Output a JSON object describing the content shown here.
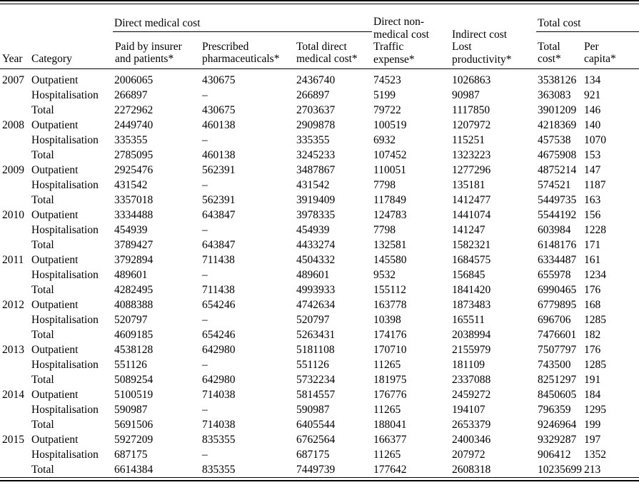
{
  "table": {
    "header": {
      "year_label": "Year",
      "category_label": "Category",
      "group_direct_medical": "Direct medical cost",
      "group_direct_nonmedical": "Direct non-medical cost",
      "group_indirect": "Indirect cost",
      "group_total": "Total cost",
      "col_paid": "Paid by insurer and patients*",
      "col_pharma": "Prescribed pharmaceuticals*",
      "col_total_direct": "Total direct medical cost*",
      "col_traffic": "Traffic expense*",
      "col_lost": "Lost productivity*",
      "col_total_cost": "Total cost*",
      "col_per_capita": "Per capita*"
    },
    "rows": [
      {
        "year": "2007",
        "category": "Outpatient",
        "values": [
          "2006065",
          "430675",
          "2436740",
          "74523",
          "1026863",
          "3538126",
          "134"
        ]
      },
      {
        "year": "",
        "category": "Hospitalisation",
        "values": [
          "266897",
          "–",
          "266897",
          "5199",
          "90987",
          "363083",
          "921"
        ]
      },
      {
        "year": "",
        "category": "Total",
        "values": [
          "2272962",
          "430675",
          "2703637",
          "79722",
          "1117850",
          "3901209",
          "146"
        ]
      },
      {
        "year": "2008",
        "category": "Outpatient",
        "values": [
          "2449740",
          "460138",
          "2909878",
          "100519",
          "1207972",
          "4218369",
          "140"
        ]
      },
      {
        "year": "",
        "category": "Hospitalisation",
        "values": [
          "335355",
          "–",
          "335355",
          "6932",
          "115251",
          "457538",
          "1070"
        ]
      },
      {
        "year": "",
        "category": "Total",
        "values": [
          "2785095",
          "460138",
          "3245233",
          "107452",
          "1323223",
          "4675908",
          "153"
        ]
      },
      {
        "year": "2009",
        "category": "Outpatient",
        "values": [
          "2925476",
          "562391",
          "3487867",
          "110051",
          "1277296",
          "4875214",
          "147"
        ]
      },
      {
        "year": "",
        "category": "Hospitalisation",
        "values": [
          "431542",
          "–",
          "431542",
          "7798",
          "135181",
          "574521",
          "1187"
        ]
      },
      {
        "year": "",
        "category": "Total",
        "values": [
          "3357018",
          "562391",
          "3919409",
          "117849",
          "1412477",
          "5449735",
          "163"
        ]
      },
      {
        "year": "2010",
        "category": "Outpatient",
        "values": [
          "3334488",
          "643847",
          "3978335",
          "124783",
          "1441074",
          "5544192",
          "156"
        ]
      },
      {
        "year": "",
        "category": "Hospitalisation",
        "values": [
          "454939",
          "–",
          "454939",
          "7798",
          "141247",
          "603984",
          "1228"
        ]
      },
      {
        "year": "",
        "category": "Total",
        "values": [
          "3789427",
          "643847",
          "4433274",
          "132581",
          "1582321",
          "6148176",
          "171"
        ]
      },
      {
        "year": "2011",
        "category": "Outpatient",
        "values": [
          "3792894",
          "711438",
          "4504332",
          "145580",
          "1684575",
          "6334487",
          "161"
        ]
      },
      {
        "year": "",
        "category": "Hospitalisation",
        "values": [
          "489601",
          "–",
          "489601",
          "9532",
          "156845",
          "655978",
          "1234"
        ]
      },
      {
        "year": "",
        "category": "Total",
        "values": [
          "4282495",
          "711438",
          "4993933",
          "155112",
          "1841420",
          "6990465",
          "176"
        ]
      },
      {
        "year": "2012",
        "category": "Outpatient",
        "values": [
          "4088388",
          "654246",
          "4742634",
          "163778",
          "1873483",
          "6779895",
          "168"
        ]
      },
      {
        "year": "",
        "category": "Hospitalisation",
        "values": [
          "520797",
          "–",
          "520797",
          "10398",
          "165511",
          "696706",
          "1285"
        ]
      },
      {
        "year": "",
        "category": "Total",
        "values": [
          "4609185",
          "654246",
          "5263431",
          "174176",
          "2038994",
          "7476601",
          "182"
        ]
      },
      {
        "year": "2013",
        "category": "Outpatient",
        "values": [
          "4538128",
          "642980",
          "5181108",
          "170710",
          "2155979",
          "7507797",
          "176"
        ]
      },
      {
        "year": "",
        "category": "Hospitalisation",
        "values": [
          "551126",
          "–",
          "551126",
          "11265",
          "181109",
          "743500",
          "1285"
        ]
      },
      {
        "year": "",
        "category": "Total",
        "values": [
          "5089254",
          "642980",
          "5732234",
          "181975",
          "2337088",
          "8251297",
          "191"
        ]
      },
      {
        "year": "2014",
        "category": "Outpatient",
        "values": [
          "5100519",
          "714038",
          "5814557",
          "176776",
          "2459272",
          "8450605",
          "184"
        ]
      },
      {
        "year": "",
        "category": "Hospitalisation",
        "values": [
          "590987",
          "–",
          "590987",
          "11265",
          "194107",
          "796359",
          "1295"
        ]
      },
      {
        "year": "",
        "category": "Total",
        "values": [
          "5691506",
          "714038",
          "6405544",
          "188041",
          "2653379",
          "9246964",
          "199"
        ]
      },
      {
        "year": "2015",
        "category": "Outpatient",
        "values": [
          "5927209",
          "835355",
          "6762564",
          "166377",
          "2400346",
          "9329287",
          "197"
        ]
      },
      {
        "year": "",
        "category": "Hospitalisation",
        "values": [
          "687175",
          "–",
          "687175",
          "11265",
          "207972",
          "906412",
          "1352"
        ]
      },
      {
        "year": "",
        "category": "Total",
        "values": [
          "6614384",
          "835355",
          "7449739",
          "177642",
          "2608318",
          "10235699",
          "213"
        ]
      }
    ]
  }
}
